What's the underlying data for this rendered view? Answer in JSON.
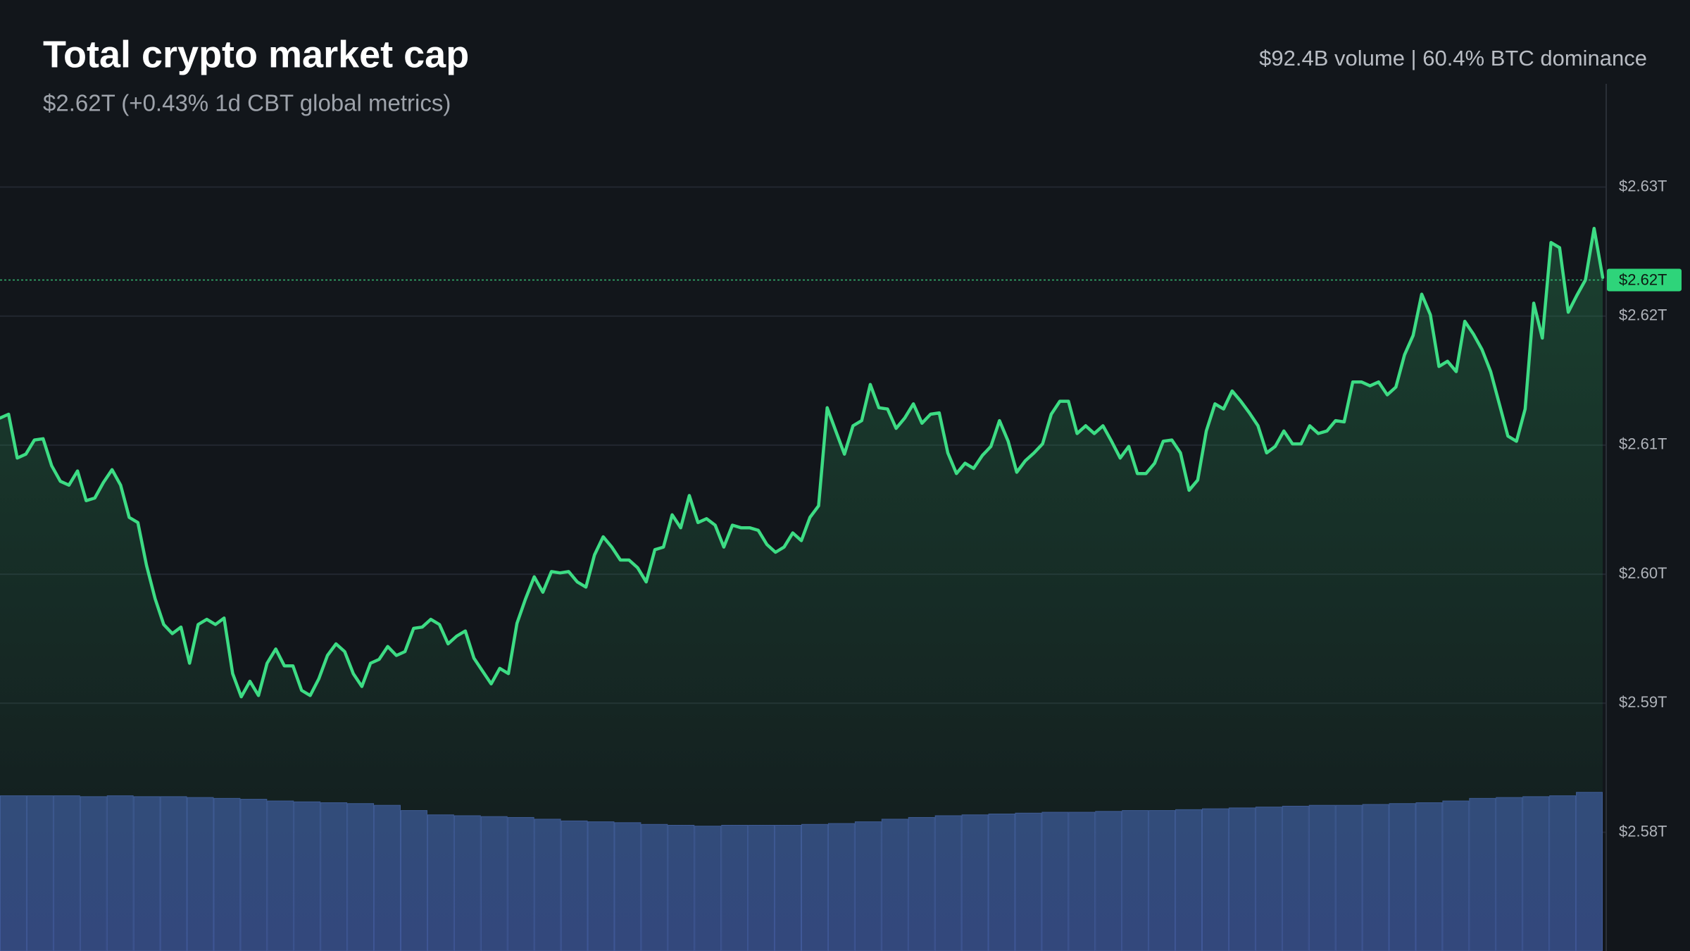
{
  "chart_data": {
    "type": "area",
    "title": "Total crypto market cap",
    "subtitle": "$2.62T (+0.43% 1d CBT global metrics)",
    "annotation": "$92.4B volume | 60.4% BTC dominance",
    "color": "#3ddc84",
    "values": [
      2.6121,
      2.6124,
      2.609,
      2.6093,
      2.6104,
      2.6105,
      2.6084,
      2.6072,
      2.6069,
      2.608,
      2.6057,
      2.6059,
      2.6071,
      2.6081,
      2.6069,
      2.6044,
      2.604,
      2.6007,
      2.5981,
      2.5961,
      2.5954,
      2.5959,
      2.5931,
      2.5961,
      2.5965,
      2.5961,
      2.5966,
      2.5923,
      2.5905,
      2.5917,
      2.5906,
      2.5931,
      2.5942,
      2.5929,
      2.5929,
      2.591,
      2.5906,
      2.5919,
      2.5937,
      2.5946,
      2.594,
      2.5923,
      2.5913,
      2.5931,
      2.5934,
      2.5944,
      2.5937,
      2.594,
      2.5958,
      2.5959,
      2.5965,
      2.5961,
      2.5946,
      2.5952,
      2.5956,
      2.5935,
      2.5925,
      2.5915,
      2.5927,
      2.5923,
      2.5962,
      2.5981,
      2.5998,
      2.5986,
      2.6002,
      2.6001,
      2.6002,
      2.5994,
      2.599,
      2.6015,
      2.6029,
      2.6021,
      2.6011,
      2.6011,
      2.6005,
      2.5994,
      2.6019,
      2.6021,
      2.6046,
      2.6036,
      2.6061,
      2.604,
      2.6043,
      2.6038,
      2.6021,
      2.6038,
      2.6036,
      2.6036,
      2.6034,
      2.6023,
      2.6017,
      2.6021,
      2.6032,
      2.6026,
      2.6044,
      2.6053,
      2.6129,
      2.6111,
      2.6093,
      2.6115,
      2.6119,
      2.6147,
      2.6129,
      2.6128,
      2.6113,
      2.6121,
      2.6132,
      2.6117,
      2.6124,
      2.6125,
      2.6094,
      2.6078,
      2.6086,
      2.6082,
      2.6092,
      2.6099,
      2.6119,
      2.6103,
      2.6079,
      2.6088,
      2.6094,
      2.6101,
      2.6124,
      2.6134,
      2.6134,
      2.6109,
      2.6115,
      2.6109,
      2.6115,
      2.6103,
      2.609,
      2.6099,
      2.6078,
      2.6078,
      2.6086,
      2.6103,
      2.6104,
      2.6094,
      2.6065,
      2.6073,
      2.6111,
      2.6132,
      2.6128,
      2.6142,
      2.6134,
      2.6125,
      2.6115,
      2.6094,
      2.6099,
      2.6111,
      2.6101,
      2.6101,
      2.6115,
      2.6109,
      2.6111,
      2.6119,
      2.6118,
      2.6149,
      2.6149,
      2.6146,
      2.6149,
      2.6139,
      2.6145,
      2.617,
      2.6185,
      2.6217,
      2.6201,
      2.6161,
      2.6165,
      2.6157,
      2.6196,
      2.6186,
      2.6174,
      2.6157,
      2.6132,
      2.6107,
      2.6103,
      2.6128,
      2.621,
      2.6183,
      2.6257,
      2.6253,
      2.6203,
      2.6216,
      2.6228,
      2.6268,
      2.623
    ],
    "ylim": [
      2.5708,
      2.638
    ],
    "yticks": [
      {
        "value": 2.58,
        "label": "$2.58T"
      },
      {
        "value": 2.59,
        "label": "$2.59T"
      },
      {
        "value": 2.6,
        "label": "$2.60T"
      },
      {
        "value": 2.61,
        "label": "$2.61T"
      },
      {
        "value": 2.62,
        "label": "$2.62T"
      },
      {
        "value": 2.63,
        "label": "$2.63T"
      }
    ],
    "grid": true,
    "price_line": {
      "value": 2.6228,
      "label": "$2.62T"
    },
    "volume": {
      "color": "#33467d",
      "y2lim": [
        0,
        100
      ],
      "values": [
        17.9,
        17.9,
        17.9,
        17.8,
        17.9,
        17.8,
        17.8,
        17.7,
        17.6,
        17.5,
        17.3,
        17.2,
        17.1,
        17.0,
        16.8,
        16.2,
        15.7,
        15.6,
        15.5,
        15.4,
        15.2,
        15.0,
        14.9,
        14.8,
        14.6,
        14.5,
        14.4,
        14.5,
        14.5,
        14.5,
        14.6,
        14.7,
        14.9,
        15.2,
        15.4,
        15.6,
        15.7,
        15.8,
        15.9,
        16.0,
        16.0,
        16.1,
        16.2,
        16.2,
        16.3,
        16.4,
        16.5,
        16.6,
        16.7,
        16.8,
        16.8,
        16.9,
        17.0,
        17.1,
        17.3,
        17.6,
        17.7,
        17.8,
        17.9,
        18.3
      ]
    }
  }
}
